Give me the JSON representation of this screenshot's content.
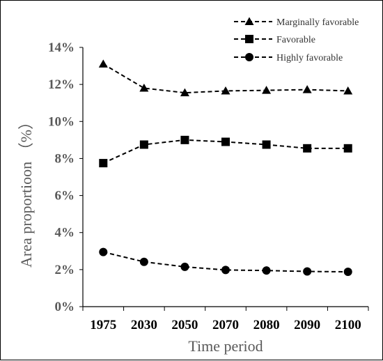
{
  "chart_data": {
    "type": "line",
    "title": "",
    "xlabel": "Time period",
    "ylabel": "Area proportioon （%）",
    "categories": [
      "1975",
      "2030",
      "2050",
      "2070",
      "2080",
      "2090",
      "2100"
    ],
    "y_ticks": [
      "0%",
      "2%",
      "4%",
      "6%",
      "8%",
      "10%",
      "12%",
      "14%"
    ],
    "ylim": [
      0,
      14
    ],
    "grid": false,
    "legend_position": "top-right",
    "series": [
      {
        "name": "Marginally favorable",
        "marker": "triangle",
        "line_style": "dashed",
        "values": [
          13.1,
          11.8,
          11.55,
          11.65,
          11.68,
          11.72,
          11.65
        ]
      },
      {
        "name": "Favorable",
        "marker": "square",
        "line_style": "dashed",
        "values": [
          7.75,
          8.75,
          9.0,
          8.9,
          8.75,
          8.55,
          8.55
        ]
      },
      {
        "name": "Highly favorable",
        "marker": "circle",
        "line_style": "dashed",
        "values": [
          2.95,
          2.42,
          2.15,
          1.98,
          1.95,
          1.9,
          1.88
        ]
      }
    ],
    "colors": {
      "series": "#000000",
      "tick_text": "#595959",
      "axis": "#000000"
    }
  }
}
